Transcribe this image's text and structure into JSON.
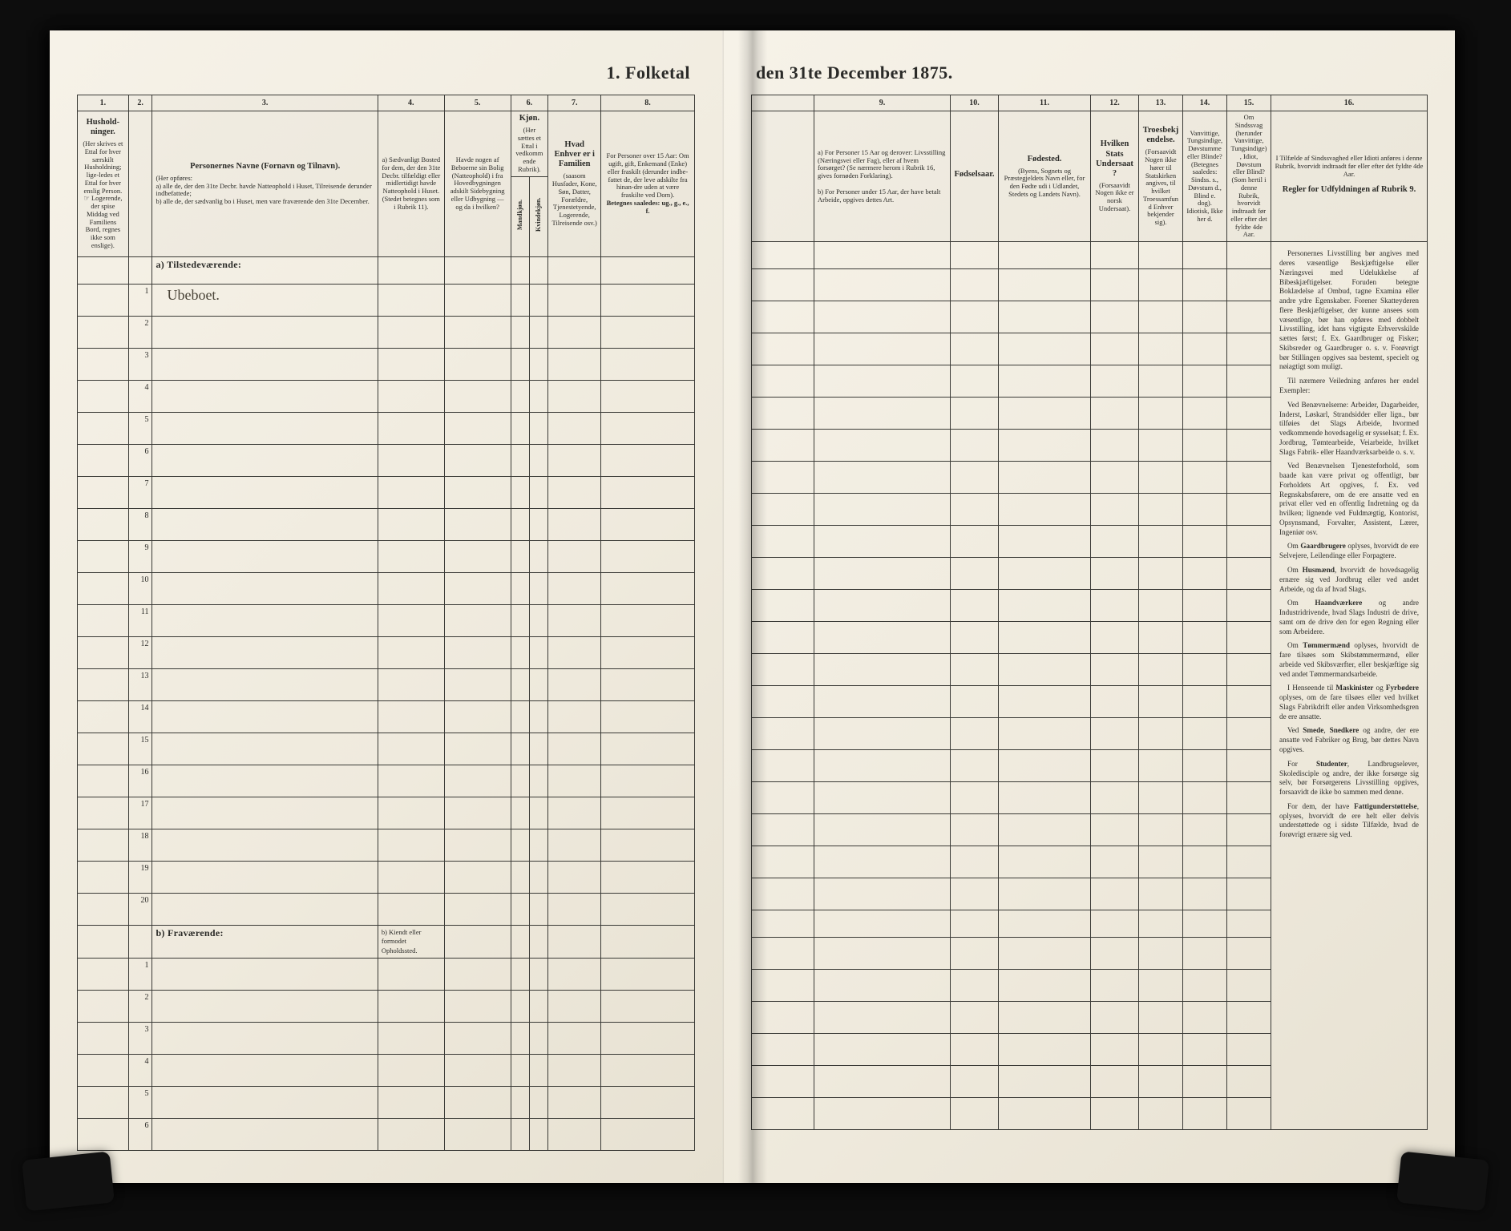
{
  "title_left": "1.  Folketal",
  "title_right": "den 31te December 1875.",
  "left": {
    "colnums": [
      "1.",
      "2.",
      "3.",
      "4.",
      "5.",
      "6.",
      "7.",
      "8."
    ],
    "headers": {
      "c1": {
        "main": "Hushold-ninger.",
        "sub": "(Her skrives et Ettal for hver særskilt Husholdning; lige-ledes et Ettal for hver enslig Person. ☞ Logerende, der spise Middag ved Familiens Bord, regnes ikke som enslige)."
      },
      "c2": {
        "main": "",
        "sub": ""
      },
      "c3": {
        "main": "Personernes Navne (Fornavn og Tilnavn).",
        "sub": "(Her opføres:\na) alle de, der den 31te Decbr. havde Natteophold i Huset, Tilreisende derunder indbefattede;\nb) alle de, der sædvanlig bo i Huset, men vare fraværende den 31te December."
      },
      "c4": {
        "main": "a) Sædvanligt Bosted for dem, der den 31te Decbr. tilfældigt eller midlertidigt havde Natteophold i Huset.",
        "sub": "(Stedet betegnes som i Rubrik 11)."
      },
      "c5": {
        "main": "Havde nogen af Beboerne sin Bolig (Natteophold) i fra Hovedbygningen adskilt Sidebygning eller Udbygning — og da i hvilken?",
        "sub": ""
      },
      "c6": {
        "main": "Kjøn.",
        "sub": "(Her sættes et Ettal i vedkommende Rubrik)."
      },
      "c6a": "Mandkjøn.",
      "c6b": "Kvindekjøn.",
      "c8_top": "Hvad Enhver er i Familien",
      "c8_sub": "(saasom Husfader, Kone, Søn, Datter, Forældre, Tjenestetyende, Logerende, Tilreisende osv.)",
      "c8b_top": "For Personer over 15 Aar: Om ugift, gift, Enkemand (Enke) eller fraskilt (derunder indbe-fattet de, der leve adskilte fra hinan-dre uden at være fraskilte ved Dom).",
      "c8b_sub": "Betegnes saaledes: ug., g., e., f."
    },
    "section_a": "a) Tilstedeværende:",
    "handwritten_row1": "Ubeboet.",
    "rows_a": [
      1,
      2,
      3,
      4,
      5,
      6,
      7,
      8,
      9,
      10,
      11,
      12,
      13,
      14,
      15,
      16,
      17,
      18,
      19,
      20
    ],
    "section_b": "b) Fraværende:",
    "b_note": "b) Kiendt eller formodet Opholdssted.",
    "rows_b": [
      1,
      2,
      3,
      4,
      5,
      6
    ]
  },
  "right": {
    "colnums": [
      "9.",
      "10.",
      "11.",
      "12.",
      "13.",
      "14.",
      "15.",
      "16."
    ],
    "headers": {
      "c9": {
        "main": "a) For Personer 15 Aar og derover: Livsstilling (Næringsvei eller Fag), eller af hvem forsørget? (Se nærmere herom i Rubrik 16, gives fornøden Forklaring).\n\nb) For Personer under 15 Aar, der have betalt Arbeide, opgives dettes Art.",
        "sub": ""
      },
      "c10": {
        "main": "Fødselsaar.",
        "sub": ""
      },
      "c11": {
        "main": "Fødested.",
        "sub": "(Byens, Sognets og Præstegjeldets Navn eller, for den Fødte udi i Udlandet, Stedets og Landets Navn)."
      },
      "c12": {
        "main": "Hvilken Stats Undersaat?",
        "sub": "(Forsaavidt Nogen ikke er norsk Undersaat)."
      },
      "c13": {
        "main": "Troesbekjendelse.",
        "sub": "(Forsaavidt Nogen ikke hører til Statskirken angives, til hvilket Troessamfund Enhver bekjender sig)."
      },
      "c14": {
        "main": "Vanvittige, Tungsindige, Døvstumme eller Blinde?",
        "sub": "(Betegnes saaledes: Sindss. s., Døvstum d., Blind e. dog). Idiotisk, Ikke her d."
      },
      "c15": {
        "main": "Om Sindssvag (herunder Vanvittige, Tungsindige), Idiot, Døvstum eller Blind?",
        "sub": "(Som hertil i denne Rubrik, hvorvidt indtraadt før eller efter det fyldte 4de Aar."
      },
      "c16": {
        "main": "I Tilfælde af Sindssvaghed eller Idioti anføres i denne Rubrik, hvorvidt indtraadt før eller efter det fyldte 4de Aar.",
        "sub": ""
      },
      "c16_title": "Regler for Udfyldningen af Rubrik 9."
    },
    "instructions": [
      "Personernes Livsstilling bør angives med deres væsentlige Beskjæftigelse eller Næringsvei med Udelukkelse af Bibeskjæftigelser. Foruden betegne Boklædelse af Ombud, tagne Examina eller andre ydre Egenskaber. Forener Skatteyderen flere Beskjæftigelser, der kunne ansees som væsentlige, bør han opføres med dobbelt Livsstilling, idet hans vigtigste Erhvervskilde sættes først; f. Ex. Gaardbruger og Fisker; Skibsreder og Gaardbruger o. s. v. Forøvrigt bør Stillingen opgives saa bestemt, specielt og nøiagtigt som muligt.",
      "Til nærmere Veiledning anføres her endel Exempler:",
      "Ved Benævnelserne: Arbeider, Dagarbeider, Inderst, Løskarl, Strandsidder eller lign., bør tilføies det Slags Arbeide, hvormed vedkommende hovedsagelig er sysselsat; f. Ex. Jordbrug, Tømtearbeide, Veiarbeide, hvilket Slags Fabrik- eller Haandværksarbeide o. s. v.",
      "Ved Benævnelsen Tjenesteforhold, som baade kan være privat og offentligt, bør Forholdets Art opgives, f. Ex. ved Regnskabsførere, om de ere ansatte ved en privat eller ved en offentlig Indretning og da hvilken; lignende ved Fuldmægtig, Kontorist, Opsynsmand, Forvalter, Assistent, Lærer, Ingeniør osv.",
      "Om Gaardbrugere oplyses, hvorvidt de ere Selvejere, Leilendinge eller Forpagtere.",
      "Om Husmænd, hvorvidt de hovedsagelig ernære sig ved Jordbrug eller ved andet Arbeide, og da af hvad Slags.",
      "Om Haandværkere og andre Industridrivende, hvad Slags Industri de drive, samt om de drive den for egen Regning eller som Arbeidere.",
      "Om Tømmermænd oplyses, hvorvidt de fare tilsøes som Skibstømmermænd, eller arbeide ved Skibsværfter, eller beskjæftige sig ved andet Tømmermandsarbeide.",
      "I Henseende til Maskinister og Fyrbødere oplyses, om de fare tilsøes eller ved hvilket Slags Fabrikdrift eller anden Virksomhedsgren de ere ansatte.",
      "Ved Smede, Snedkere og andre, der ere ansatte ved Fabriker og Brug, bør dettes Navn opgives.",
      "For Studenter, Landbrugselever, Skoledisciple og andre, der ikke forsørge sig selv, bør Forsørgerens Livsstilling opgives, forsaavidt de ikke bo sammen med denne.",
      "For dem, der have Fattigunderstøttelse, oplyses, hvorvidt de ere helt eller delvis understøttede og i sidste Tilfælde, hvad de forøvrigt ernære sig ved."
    ]
  }
}
